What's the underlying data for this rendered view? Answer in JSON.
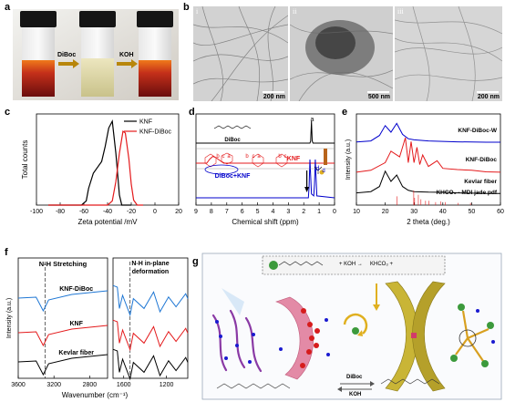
{
  "panels": {
    "a": {
      "label": "a",
      "arrow1": "DiBoc",
      "arrow2": "KOH"
    },
    "b": {
      "label": "b",
      "images": [
        {
          "num": "i",
          "scale": "200 nm"
        },
        {
          "num": "ii",
          "scale": "500 nm"
        },
        {
          "num": "iii",
          "scale": "200 nm"
        }
      ]
    },
    "c": {
      "label": "c"
    },
    "d": {
      "label": "d",
      "peak_a": "a",
      "reagent_name": "DiBoc",
      "mid_labels": [
        "b",
        "c",
        "a",
        "b",
        "c",
        "a",
        "b",
        "c"
      ],
      "knf": "KNF",
      "product": "DiBoc+KNF",
      "peak_d": "d",
      "product_d": "d"
    },
    "e": {
      "label": "e"
    },
    "f": {
      "label": "f",
      "annot1": "N-H Stretching",
      "annot2a": "N-H in-plane",
      "annot2b": "deformation"
    },
    "g": {
      "label": "g",
      "eq_right": "KHCO₃ +",
      "eq_plus": "+ KOH →",
      "rev1": "DiBoc",
      "rev2": "KOH"
    }
  },
  "chart_data": [
    {
      "panel": "c",
      "type": "line",
      "xlabel": "Zeta potential /mV",
      "ylabel": "Total counts",
      "xlim": [
        -100,
        20
      ],
      "ylim": [
        0,
        1
      ],
      "xticks": [
        "-100",
        "-80",
        "-60",
        "-40",
        "-20",
        "0",
        "20"
      ],
      "series": [
        {
          "name": "KNF",
          "color": "#000000",
          "x": [
            -90,
            -62,
            -58,
            -56,
            -52,
            -48,
            -45,
            -42,
            -39,
            -36,
            -33,
            -30,
            -28,
            -20
          ],
          "y": [
            0,
            0,
            0.05,
            0.2,
            0.38,
            0.46,
            0.52,
            0.7,
            0.92,
            1.0,
            0.62,
            0.12,
            0,
            0
          ]
        },
        {
          "name": "KNF-DiBoc",
          "color": "#e41a1c",
          "x": [
            -90,
            -40,
            -36,
            -33,
            -30,
            -27,
            -25,
            -22,
            -20,
            -18,
            -15,
            -10
          ],
          "y": [
            0,
            0,
            0.05,
            0.28,
            0.62,
            0.88,
            0.86,
            0.55,
            0.25,
            0.06,
            0,
            0
          ]
        }
      ]
    },
    {
      "panel": "d",
      "type": "line",
      "xlabel": "Chemical shift (ppm)",
      "xlim": [
        9,
        0
      ],
      "xticks": [
        "9",
        "8",
        "7",
        "6",
        "5",
        "4",
        "3",
        "2",
        "1",
        "0"
      ],
      "series": [
        {
          "name": "DiBoc",
          "color": "#000000",
          "x": [
            9,
            1.6,
            1.55,
            1.5,
            1.45,
            1.4,
            0
          ],
          "y": [
            0,
            0,
            0.1,
            1,
            0.1,
            0,
            0
          ]
        },
        {
          "name": "KNF",
          "color": "#e41a1c",
          "x": [
            9,
            8.3,
            8.1,
            7.9,
            7.7,
            7.5,
            7.2,
            0
          ],
          "y": [
            0,
            0,
            0.15,
            0.25,
            0.2,
            0.12,
            0,
            0
          ]
        },
        {
          "name": "DiBoc+KNF",
          "color": "#0000cc",
          "x": [
            9,
            1.7,
            1.65,
            1.6,
            1.5,
            1.35,
            1.3,
            1.25,
            1.15,
            0
          ],
          "y": [
            0,
            0,
            0.3,
            1,
            0.1,
            0.05,
            0.35,
            1,
            0.05,
            0
          ]
        }
      ]
    },
    {
      "panel": "e",
      "type": "line",
      "xlabel": "2 theta (deg.)",
      "ylabel": "Intensity (a.u.)",
      "xlim": [
        10,
        60
      ],
      "xticks": [
        "10",
        "20",
        "30",
        "40",
        "50",
        "60"
      ],
      "series": [
        {
          "name": "KNF-DiBoc-W",
          "color": "#0000cc",
          "x": [
            10,
            15,
            18,
            20,
            22,
            24,
            26,
            28,
            30,
            35,
            40,
            45,
            50,
            55,
            60
          ],
          "y": [
            0.05,
            0.1,
            0.35,
            0.8,
            0.5,
            0.9,
            0.4,
            0.2,
            0.15,
            0.1,
            0.08,
            0.06,
            0.05,
            0.04,
            0.04
          ]
        },
        {
          "name": "KNF-DiBoc",
          "color": "#e41a1c",
          "x": [
            10,
            15,
            20,
            22,
            25,
            27,
            28,
            29,
            30,
            31,
            32,
            33,
            35,
            38,
            40,
            45,
            50,
            55,
            60
          ],
          "y": [
            0.05,
            0.1,
            0.3,
            0.6,
            0.45,
            0.95,
            0.3,
            0.85,
            0.3,
            0.7,
            0.25,
            0.5,
            0.2,
            0.35,
            0.15,
            0.12,
            0.1,
            0.06,
            0.05
          ]
        },
        {
          "name": "Kevlar fiber",
          "color": "#000000",
          "x": [
            10,
            15,
            18,
            20,
            22,
            24,
            26,
            28,
            30,
            35,
            40,
            45,
            50,
            55,
            60
          ],
          "y": [
            0.05,
            0.1,
            0.3,
            0.9,
            0.5,
            0.75,
            0.3,
            0.15,
            0.1,
            0.08,
            0.07,
            0.05,
            0.04,
            0.03,
            0.03
          ]
        },
        {
          "name": "KHCO₃ - MDI jade pdf",
          "color": "#e41a1c",
          "style": "sticks",
          "x": [
            24.1,
            29.9,
            30.2,
            31.5,
            32.4,
            34.0,
            35.1,
            37.5,
            39.2,
            40.8,
            45.3,
            49.6
          ],
          "y": [
            0.6,
            1,
            0.5,
            0.7,
            0.4,
            0.3,
            0.3,
            0.2,
            0.25,
            0.2,
            0.15,
            0.15
          ]
        }
      ]
    },
    {
      "panel": "f",
      "type": "line",
      "xlabel": "Wavenumber (cm⁻¹)",
      "ylabel": "Intensity (a.u.)",
      "xlim": [
        3600,
        1000
      ],
      "xticks": [
        "3600",
        "3200",
        "2800",
        "1600",
        "1200"
      ],
      "series": [
        {
          "name": "KNF-DiBoc",
          "color": "#1f77d4"
        },
        {
          "name": "KNF",
          "color": "#e41a1c"
        },
        {
          "name": "Kevlar fiber",
          "color": "#000000"
        }
      ]
    }
  ]
}
